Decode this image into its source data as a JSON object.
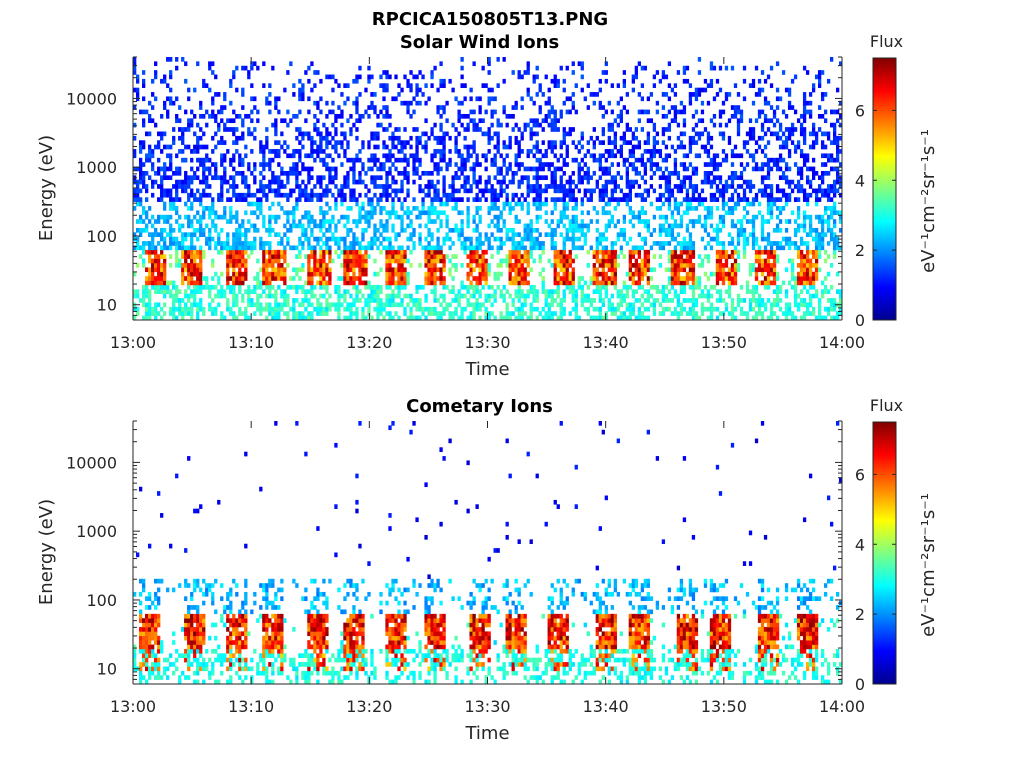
{
  "figure": {
    "title": "RPCICA150805T13.PNG"
  },
  "chart_data": [
    {
      "type": "heatmap",
      "title": "Solar Wind Ions",
      "xlabel": "Time",
      "ylabel": "Energy (eV)",
      "x_range": [
        "13:00",
        "14:00"
      ],
      "x_ticks": [
        "13:00",
        "13:10",
        "13:20",
        "13:30",
        "13:40",
        "13:50",
        "14:00"
      ],
      "y_scale": "log",
      "y_range": [
        6,
        40000
      ],
      "y_ticks": [
        10,
        100,
        1000,
        10000
      ],
      "y_tick_labels": [
        "10",
        "100",
        "1000",
        "10000"
      ],
      "colorbar": {
        "label": "Flux",
        "units": "eV⁻¹cm⁻²sr⁻¹s⁻¹",
        "range": [
          0,
          7.5
        ],
        "ticks": [
          0,
          2,
          4,
          6
        ],
        "colormap": "jet"
      },
      "description_bands": [
        {
          "energy_range": [
            6,
            20
          ],
          "flux_range": [
            2.5,
            3.5
          ]
        },
        {
          "energy_range": [
            25,
            60
          ],
          "flux_range": [
            4.5,
            7.5
          ],
          "intermittent": true
        },
        {
          "energy_range": [
            60,
            300
          ],
          "flux_range": [
            1.8,
            2.8
          ]
        },
        {
          "energy_range": [
            300,
            40000
          ],
          "flux_range": [
            0.8,
            1.6
          ],
          "sparse": true
        }
      ]
    },
    {
      "type": "heatmap",
      "title": "Cometary Ions",
      "xlabel": "Time",
      "ylabel": "Energy (eV)",
      "x_range": [
        "13:00",
        "14:00"
      ],
      "x_ticks": [
        "13:00",
        "13:10",
        "13:20",
        "13:30",
        "13:40",
        "13:50",
        "14:00"
      ],
      "y_scale": "log",
      "y_range": [
        6,
        40000
      ],
      "y_ticks": [
        10,
        100,
        1000,
        10000
      ],
      "y_tick_labels": [
        "10",
        "100",
        "1000",
        "10000"
      ],
      "colorbar": {
        "label": "Flux",
        "units": "eV⁻¹cm⁻²sr⁻¹s⁻¹",
        "range": [
          0,
          7.5
        ],
        "ticks": [
          0,
          2,
          4,
          6
        ],
        "colormap": "jet"
      },
      "description_bands": [
        {
          "energy_range": [
            6,
            20
          ],
          "flux_range": [
            2.5,
            3.5
          ],
          "intermittent": true
        },
        {
          "energy_range": [
            15,
            60
          ],
          "flux_range": [
            5,
            7.5
          ],
          "intermittent": true
        },
        {
          "energy_range": [
            60,
            200
          ],
          "flux_range": [
            1.8,
            2.8
          ],
          "sparse": true
        },
        {
          "energy_range": [
            200,
            20000
          ],
          "flux_range": [
            0.5,
            1.2
          ],
          "very_sparse": true
        }
      ]
    }
  ]
}
